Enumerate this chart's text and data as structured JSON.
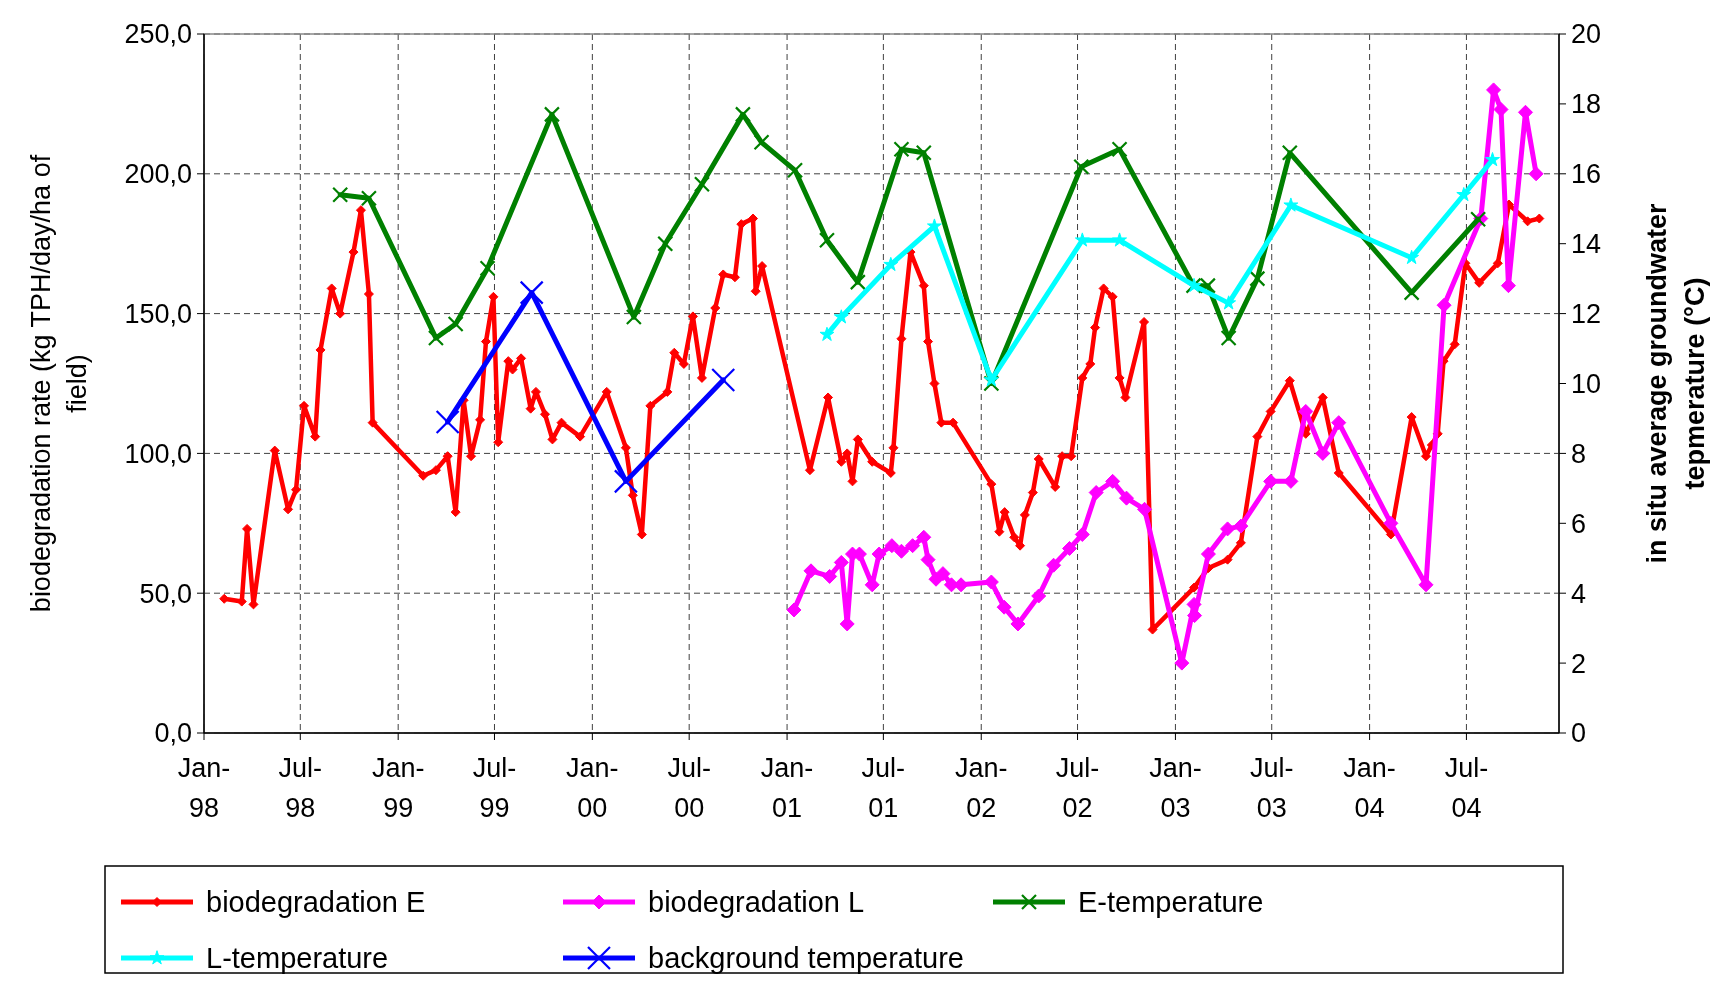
{
  "chart_data": {
    "type": "line",
    "ylabel": "biodegradation rate (kg TPH/day/ha of field)",
    "y2label": "in situ average groundwater tepmerature (°C)",
    "xlim": [
      "1998-01-01",
      "2004-12-22"
    ],
    "xticks": [
      {
        "value": "1998-01-01",
        "label": "Jan-98"
      },
      {
        "value": "1998-07-01",
        "label": "Jul-98"
      },
      {
        "value": "1999-01-01",
        "label": "Jan-99"
      },
      {
        "value": "1999-07-01",
        "label": "Jul-99"
      },
      {
        "value": "2000-01-01",
        "label": "Jan-00"
      },
      {
        "value": "2000-07-01",
        "label": "Jul-00"
      },
      {
        "value": "2001-01-01",
        "label": "Jan-01"
      },
      {
        "value": "2001-07-01",
        "label": "Jul-01"
      },
      {
        "value": "2002-01-01",
        "label": "Jan-02"
      },
      {
        "value": "2002-07-01",
        "label": "Jul-02"
      },
      {
        "value": "2003-01-01",
        "label": "Jan-03"
      },
      {
        "value": "2003-07-01",
        "label": "Jul-03"
      },
      {
        "value": "2004-01-01",
        "label": "Jan-04"
      },
      {
        "value": "2004-07-01",
        "label": "Jul-04"
      }
    ],
    "ylim": [
      0,
      250
    ],
    "yticks": [
      {
        "value": 0,
        "label": "0,0"
      },
      {
        "value": 50,
        "label": "50,0"
      },
      {
        "value": 100,
        "label": "100,0"
      },
      {
        "value": 150,
        "label": "150,0"
      },
      {
        "value": 200,
        "label": "200,0"
      },
      {
        "value": 250,
        "label": "250,0"
      }
    ],
    "y2lim": [
      0,
      20
    ],
    "y2ticks": [
      0,
      2,
      4,
      6,
      8,
      10,
      12,
      14,
      16,
      18,
      20
    ],
    "grid": true,
    "legend": "bottom",
    "line_style": "solid",
    "series": [
      {
        "name": "biodegradation E",
        "color": "#ff0000",
        "marker": "diamond",
        "x": [
          "1998-02-08",
          "1998-03-13",
          "1998-03-23",
          "1998-04-04",
          "1998-05-14",
          "1998-06-08",
          "1998-06-23",
          "1998-07-08",
          "1998-07-29",
          "1998-08-08",
          "1998-08-29",
          "1998-09-14",
          "1998-10-09",
          "1998-10-23",
          "1998-11-07",
          "1998-11-14",
          "1999-02-17",
          "1999-03-13",
          "1999-04-04",
          "1999-04-19",
          "1999-05-04",
          "1999-05-18",
          "1999-06-04",
          "1999-06-15",
          "1999-06-29",
          "1999-07-08",
          "1999-07-27",
          "1999-08-04",
          "1999-08-20",
          "1999-09-07",
          "1999-09-17",
          "1999-10-04",
          "1999-10-18",
          "1999-11-04",
          "1999-12-09",
          "2000-01-28",
          "2000-03-04",
          "2000-03-17",
          "2000-04-03",
          "2000-04-19",
          "2000-05-21",
          "2000-06-03",
          "2000-06-21",
          "2000-07-08",
          "2000-07-25",
          "2000-08-19",
          "2000-09-03",
          "2000-09-25",
          "2000-10-07",
          "2000-10-29",
          "2000-11-03",
          "2000-11-15",
          "2001-02-13",
          "2001-03-19",
          "2001-04-13",
          "2001-04-24",
          "2001-05-04",
          "2001-05-14",
          "2001-06-10",
          "2001-07-15",
          "2001-07-20",
          "2001-08-04",
          "2001-08-21",
          "2001-09-15",
          "2001-09-23",
          "2001-10-05",
          "2001-10-18",
          "2001-11-09",
          "2002-01-20",
          "2002-02-04",
          "2002-02-14",
          "2002-03-04",
          "2002-03-15",
          "2002-03-24",
          "2002-04-08",
          "2002-04-19",
          "2002-05-20",
          "2002-06-02",
          "2002-06-19",
          "2002-07-10",
          "2002-07-25",
          "2002-08-03",
          "2002-08-19",
          "2002-09-05",
          "2002-09-18",
          "2002-09-29",
          "2002-11-03",
          "2002-11-19",
          "2003-02-05",
          "2003-03-04",
          "2003-04-09",
          "2003-05-04",
          "2003-06-04",
          "2003-06-29",
          "2003-08-04",
          "2003-09-03",
          "2003-10-05",
          "2003-11-04",
          "2004-02-10",
          "2004-03-20",
          "2004-04-16",
          "2004-04-27",
          "2004-05-08",
          "2004-05-19",
          "2004-06-09",
          "2004-06-29",
          "2004-07-25",
          "2004-08-29",
          "2004-09-19",
          "2004-10-24",
          "2004-11-15"
        ],
        "values": [
          48,
          47,
          73,
          46,
          101,
          80,
          87,
          117,
          106,
          137,
          159,
          150,
          172,
          187,
          157,
          111,
          92,
          94,
          99,
          79,
          119,
          99,
          112,
          140,
          156,
          104,
          133,
          130,
          134,
          116,
          122,
          114,
          105,
          111,
          106,
          122,
          102,
          85,
          71,
          117,
          122,
          136,
          132,
          149,
          127,
          152,
          164,
          163,
          182,
          184,
          158,
          167,
          94,
          120,
          97,
          100,
          90,
          105,
          97,
          93,
          102,
          141,
          172,
          160,
          140,
          125,
          111,
          111,
          89,
          72,
          79,
          70,
          67,
          78,
          86,
          98,
          88,
          99,
          99,
          127,
          132,
          145,
          159,
          156,
          127,
          120,
          147,
          37,
          52,
          59,
          62,
          68,
          106,
          115,
          126,
          107,
          120,
          93,
          71,
          113,
          99,
          103,
          107,
          133,
          139,
          168,
          161,
          168,
          189,
          183,
          184
        ]
      },
      {
        "name": "biodegradation L",
        "color": "#ff00ff",
        "marker": "diamond",
        "x": [
          "2001-01-14",
          "2001-02-15",
          "2001-03-22",
          "2001-04-13",
          "2001-04-24",
          "2001-05-04",
          "2001-05-17",
          "2001-06-10",
          "2001-06-23",
          "2001-07-17",
          "2001-08-04",
          "2001-08-25",
          "2001-09-15",
          "2001-09-23",
          "2001-10-08",
          "2001-10-21",
          "2001-11-06",
          "2001-11-24",
          "2002-01-20",
          "2002-02-13",
          "2002-03-11",
          "2002-04-19",
          "2002-05-17",
          "2002-06-16",
          "2002-07-10",
          "2002-08-05",
          "2002-09-05",
          "2002-10-01",
          "2002-11-04",
          "2003-01-13",
          "2003-02-05",
          "2003-02-06",
          "2003-03-04",
          "2003-04-09",
          "2003-05-04",
          "2003-06-29",
          "2003-08-06",
          "2003-09-03",
          "2003-10-05",
          "2003-11-04",
          "2004-02-10",
          "2004-04-16",
          "2004-05-20",
          "2004-07-28",
          "2004-08-21",
          "2004-09-04",
          "2004-09-18",
          "2004-10-20",
          "2004-11-09"
        ],
        "values": [
          44,
          58,
          56,
          61,
          39,
          64,
          64,
          53,
          64,
          67,
          65,
          67,
          70,
          62,
          55,
          57,
          53,
          53,
          54,
          45,
          39,
          49,
          60,
          66,
          71,
          86,
          90,
          84,
          80,
          25,
          46,
          42,
          64,
          73,
          74,
          90,
          90,
          115,
          100,
          111,
          75,
          53,
          153,
          184,
          230,
          223,
          160,
          222,
          200
        ]
      },
      {
        "name": "E-temperature",
        "color": "#008000",
        "marker": "cross",
        "axis": "y2",
        "x": [
          "1998-09-14",
          "1998-11-07",
          "1999-03-13",
          "1999-04-19",
          "1999-06-18",
          "1999-10-17",
          "2000-03-19",
          "2000-05-17",
          "2000-07-25",
          "2000-10-10",
          "2000-11-14",
          "2001-01-16",
          "2001-03-17",
          "2001-05-14",
          "2001-08-04",
          "2001-09-15",
          "2002-01-20",
          "2002-07-08",
          "2002-09-18",
          "2003-02-04",
          "2003-03-03",
          "2003-04-11",
          "2003-06-04",
          "2003-08-04",
          "2004-03-20",
          "2004-07-23"
        ],
        "values": [
          15.4,
          15.3,
          11.3,
          11.7,
          13.3,
          17.7,
          11.9,
          14,
          15.7,
          17.7,
          16.9,
          16.1,
          14.1,
          12.9,
          16.7,
          16.6,
          10,
          16.2,
          16.7,
          12.8,
          12.8,
          11.3,
          13,
          16.6,
          12.6,
          14.7
        ]
      },
      {
        "name": "L-temperature",
        "color": "#00ffff",
        "marker": "star",
        "axis": "y2",
        "x": [
          "2001-03-17",
          "2001-04-13",
          "2001-07-15",
          "2001-10-05",
          "2002-01-20",
          "2002-07-10",
          "2002-09-18",
          "2003-02-05",
          "2003-04-11",
          "2003-08-06",
          "2004-03-20",
          "2004-06-26",
          "2004-08-19"
        ],
        "values": [
          11.4,
          11.9,
          13.4,
          14.5,
          10.1,
          14.1,
          14.1,
          12.8,
          12.3,
          15.1,
          13.6,
          15.4,
          16.4
        ]
      },
      {
        "name": "background temperature",
        "color": "#0000ff",
        "marker": "cross",
        "axis": "y2",
        "x": [
          "1999-04-04",
          "1999-09-09",
          "2000-03-04",
          "2000-09-03"
        ],
        "values": [
          8.9,
          12.6,
          7.2,
          10.1
        ]
      }
    ]
  }
}
